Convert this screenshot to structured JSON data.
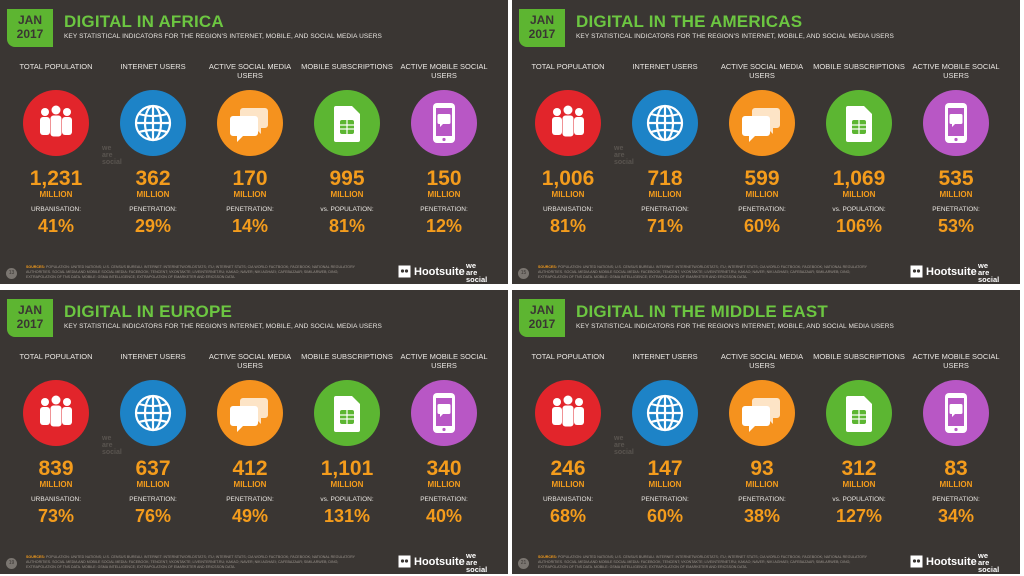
{
  "panels": [
    {
      "jan": "JAN",
      "year": "2017",
      "title": "DIGITAL IN AFRICA",
      "subtitle": "KEY STATISTICAL INDICATORS FOR THE REGION'S INTERNET, MOBILE, AND SOCIAL MEDIA USERS",
      "page": "13",
      "stats": [
        {
          "label": "TOTAL POPULATION",
          "value": "1,231",
          "unit": "MILLION",
          "sublabel": "URBANISATION:",
          "pct": "41%"
        },
        {
          "label": "INTERNET USERS",
          "value": "362",
          "unit": "MILLION",
          "sublabel": "PENETRATION:",
          "pct": "29%"
        },
        {
          "label": "ACTIVE SOCIAL MEDIA USERS",
          "value": "170",
          "unit": "MILLION",
          "sublabel": "PENETRATION:",
          "pct": "14%"
        },
        {
          "label": "MOBILE SUBSCRIPTIONS",
          "value": "995",
          "unit": "MILLION",
          "sublabel": "vs. POPULATION:",
          "pct": "81%"
        },
        {
          "label": "ACTIVE MOBILE SOCIAL USERS",
          "value": "150",
          "unit": "MILLION",
          "sublabel": "PENETRATION:",
          "pct": "12%"
        }
      ]
    },
    {
      "jan": "JAN",
      "year": "2017",
      "title": "DIGITAL IN THE AMERICAS",
      "subtitle": "KEY STATISTICAL INDICATORS FOR THE REGION'S INTERNET, MOBILE, AND SOCIAL MEDIA USERS",
      "page": "15",
      "stats": [
        {
          "label": "TOTAL POPULATION",
          "value": "1,006",
          "unit": "MILLION",
          "sublabel": "URBANISATION:",
          "pct": "81%"
        },
        {
          "label": "INTERNET USERS",
          "value": "718",
          "unit": "MILLION",
          "sublabel": "PENETRATION:",
          "pct": "71%"
        },
        {
          "label": "ACTIVE SOCIAL MEDIA USERS",
          "value": "599",
          "unit": "MILLION",
          "sublabel": "PENETRATION:",
          "pct": "60%"
        },
        {
          "label": "MOBILE SUBSCRIPTIONS",
          "value": "1,069",
          "unit": "MILLION",
          "sublabel": "vs. POPULATION:",
          "pct": "106%"
        },
        {
          "label": "ACTIVE MOBILE SOCIAL USERS",
          "value": "535",
          "unit": "MILLION",
          "sublabel": "PENETRATION:",
          "pct": "53%"
        }
      ]
    },
    {
      "jan": "JAN",
      "year": "2017",
      "title": "DIGITAL IN EUROPE",
      "subtitle": "KEY STATISTICAL INDICATORS FOR THE REGION'S INTERNET, MOBILE, AND SOCIAL MEDIA USERS",
      "page": "19",
      "stats": [
        {
          "label": "TOTAL POPULATION",
          "value": "839",
          "unit": "MILLION",
          "sublabel": "URBANISATION:",
          "pct": "73%"
        },
        {
          "label": "INTERNET USERS",
          "value": "637",
          "unit": "MILLION",
          "sublabel": "PENETRATION:",
          "pct": "76%"
        },
        {
          "label": "ACTIVE SOCIAL MEDIA USERS",
          "value": "412",
          "unit": "MILLION",
          "sublabel": "PENETRATION:",
          "pct": "49%"
        },
        {
          "label": "MOBILE SUBSCRIPTIONS",
          "value": "1,101",
          "unit": "MILLION",
          "sublabel": "vs. POPULATION:",
          "pct": "131%"
        },
        {
          "label": "ACTIVE MOBILE SOCIAL USERS",
          "value": "340",
          "unit": "MILLION",
          "sublabel": "PENETRATION:",
          "pct": "40%"
        }
      ]
    },
    {
      "jan": "JAN",
      "year": "2017",
      "title": "DIGITAL IN THE MIDDLE EAST",
      "subtitle": "KEY STATISTICAL INDICATORS FOR THE REGION'S INTERNET, MOBILE, AND SOCIAL MEDIA USERS",
      "page": "21",
      "stats": [
        {
          "label": "TOTAL POPULATION",
          "value": "246",
          "unit": "MILLION",
          "sublabel": "URBANISATION:",
          "pct": "68%"
        },
        {
          "label": "INTERNET USERS",
          "value": "147",
          "unit": "MILLION",
          "sublabel": "PENETRATION:",
          "pct": "60%"
        },
        {
          "label": "ACTIVE SOCIAL MEDIA USERS",
          "value": "93",
          "unit": "MILLION",
          "sublabel": "PENETRATION:",
          "pct": "38%"
        },
        {
          "label": "MOBILE SUBSCRIPTIONS",
          "value": "312",
          "unit": "MILLION",
          "sublabel": "vs. POPULATION:",
          "pct": "127%"
        },
        {
          "label": "ACTIVE MOBILE SOCIAL USERS",
          "value": "83",
          "unit": "MILLION",
          "sublabel": "PENETRATION:",
          "pct": "34%"
        }
      ]
    }
  ],
  "sources_label": "SOURCES:",
  "sources_text": "POPULATION: UNITED NATIONS; U.S. CENSUS BUREAU. INTERNET: INTERNETWORLDSTATS; ITU; INTERNET STATS; CIA WORLD FACTBOOK; FACEBOOK; NATIONAL REGULATORY AUTHORITIES. SOCIAL MEDIA AND MOBILE SOCIAL MEDIA: FACEBOOK; TENCENT; VKONTAKTE; LIVEINTERNET.RU; KAKAO; NAVER; NIKI AGHAEI; CAFEBAZAAR; SIMILARWEB; DING; EXTRAPOLATION OF TNS DATA. MOBILE: GSMA INTELLIGENCE; EXTRAPOLATION OF EMARKETER AND ERICSSON DATA.",
  "brand": {
    "hootsuite": "Hootsuite",
    "ws1": "we",
    "ws2": "are",
    "ws3": "social"
  },
  "watermark": {
    "w1": "we",
    "w2": "are",
    "w3": "social"
  },
  "colors": {
    "background": "#3a3633",
    "accent_green": "#5db531",
    "stat_orange": "#f49c1c",
    "population_red": "#e2252b",
    "internet_blue": "#1d83c7",
    "social_orange": "#f5921e",
    "mobile_green": "#5cb632",
    "mobile_social_purple": "#b857c5"
  },
  "icons": [
    "people-icon",
    "globe-icon",
    "chat-bubbles-icon",
    "sim-card-icon",
    "smartphone-chat-icon"
  ]
}
